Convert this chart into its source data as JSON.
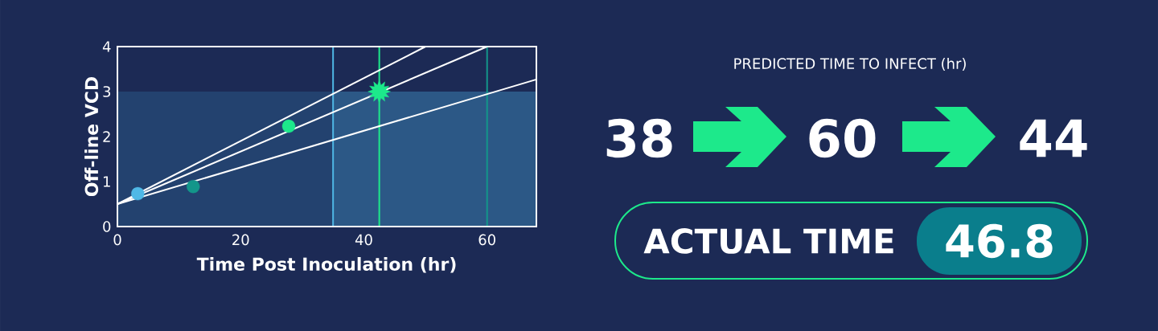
{
  "chart_data": [
    {
      "type": "scatter",
      "xlabel": "Time Post Inoculation (hr)",
      "ylabel": "Off-line VCD",
      "xlim": [
        0,
        68
      ],
      "ylim": [
        0,
        4
      ],
      "xticks": [
        0,
        20,
        40,
        60
      ],
      "yticks": [
        0,
        1,
        2,
        3,
        4
      ],
      "bands": [
        {
          "axis": "y",
          "from": 0,
          "to": 3,
          "color": "#23426f"
        },
        {
          "axis": "x",
          "from": 35,
          "to": 68,
          "color": "#2c5886"
        }
      ],
      "ref_lines": [
        {
          "axis": "x",
          "value": 35,
          "color": "#4fb8e6"
        },
        {
          "axis": "x",
          "value": 42.5,
          "color": "#1de98b"
        },
        {
          "axis": "x",
          "value": 60,
          "color": "#13968a"
        }
      ],
      "series": [
        {
          "type": "line",
          "x": [
            0,
            50
          ],
          "values": [
            0.5,
            4
          ],
          "color": "#ffffff"
        },
        {
          "type": "line",
          "x": [
            0,
            60
          ],
          "values": [
            0.5,
            4
          ],
          "color": "#ffffff"
        },
        {
          "type": "line",
          "x": [
            0,
            68
          ],
          "values": [
            0.5,
            3.27
          ],
          "color": "#ffffff"
        },
        {
          "type": "scatter",
          "marker": "circle",
          "x": [
            3.3,
            12.3,
            27.8
          ],
          "values": [
            0.73,
            0.89,
            2.23
          ],
          "colors": [
            "#4fb8e6",
            "#13968a",
            "#1de98b"
          ]
        },
        {
          "type": "scatter",
          "marker": "star",
          "x": [
            42.5
          ],
          "values": [
            3
          ],
          "color": "#1de98b"
        }
      ]
    },
    {
      "type": "other",
      "title": "PREDICTED TIME TO INFECT (hr)",
      "annotations": [
        "38",
        "60",
        "44",
        "ACTUAL TIME",
        "46.8"
      ]
    }
  ]
}
